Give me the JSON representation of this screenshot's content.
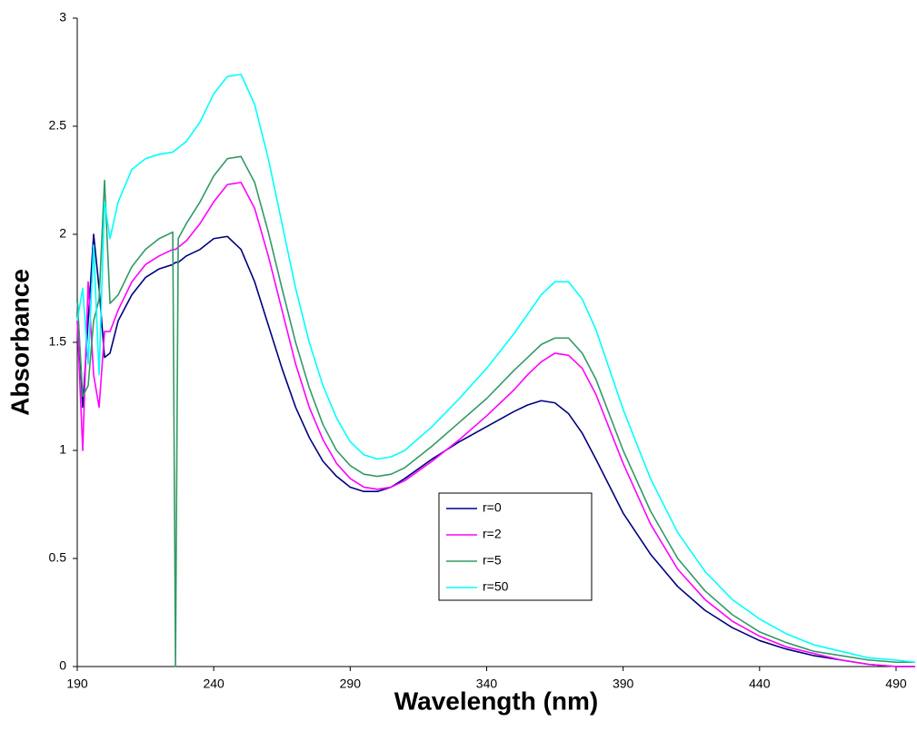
{
  "chart_data": {
    "type": "line",
    "x_label": "Wavelength (nm)",
    "y_label": "Absorbance",
    "x": [
      190,
      192,
      194,
      196,
      198,
      200,
      202,
      205,
      210,
      215,
      220,
      225,
      226,
      227,
      230,
      235,
      240,
      245,
      250,
      255,
      260,
      265,
      270,
      275,
      280,
      285,
      290,
      295,
      300,
      305,
      310,
      320,
      330,
      340,
      350,
      355,
      360,
      365,
      370,
      375,
      380,
      390,
      400,
      410,
      420,
      430,
      440,
      450,
      460,
      470,
      480,
      490,
      497
    ],
    "xlim": [
      190,
      497
    ],
    "xticks": [
      190,
      240,
      290,
      340,
      390,
      440,
      490
    ],
    "ylim": [
      0,
      3
    ],
    "yticks": [
      0,
      0.5,
      1,
      1.5,
      2,
      2.5,
      3
    ],
    "grid": false,
    "legend": "center",
    "series": [
      {
        "name": "r=0",
        "color": "#000080",
        "values": [
          1.7,
          1.2,
          1.6,
          2.0,
          1.75,
          1.43,
          1.45,
          1.6,
          1.72,
          1.8,
          1.84,
          1.86,
          1.87,
          1.87,
          1.9,
          1.93,
          1.98,
          1.99,
          1.93,
          1.78,
          1.58,
          1.38,
          1.2,
          1.06,
          0.95,
          0.88,
          0.83,
          0.81,
          0.81,
          0.83,
          0.87,
          0.96,
          1.04,
          1.11,
          1.18,
          1.21,
          1.23,
          1.22,
          1.17,
          1.08,
          0.96,
          0.71,
          0.52,
          0.37,
          0.26,
          0.18,
          0.12,
          0.08,
          0.05,
          0.03,
          0.01,
          0.0,
          0.0
        ]
      },
      {
        "name": "r=2",
        "color": "#ff00ff",
        "values": [
          1.6,
          1.0,
          1.78,
          1.35,
          1.2,
          1.55,
          1.55,
          1.65,
          1.78,
          1.86,
          1.9,
          1.93,
          1.93,
          1.94,
          1.97,
          2.05,
          2.15,
          2.23,
          2.24,
          2.12,
          1.9,
          1.65,
          1.4,
          1.2,
          1.05,
          0.94,
          0.87,
          0.83,
          0.82,
          0.83,
          0.86,
          0.95,
          1.05,
          1.16,
          1.28,
          1.35,
          1.41,
          1.45,
          1.44,
          1.38,
          1.26,
          0.94,
          0.66,
          0.45,
          0.31,
          0.21,
          0.14,
          0.09,
          0.06,
          0.03,
          0.01,
          0.0,
          0.0
        ]
      },
      {
        "name": "r=5",
        "color": "#339966",
        "values": [
          1.7,
          1.25,
          1.3,
          1.6,
          1.7,
          2.25,
          1.68,
          1.72,
          1.85,
          1.93,
          1.98,
          2.01,
          0,
          1.98,
          2.05,
          2.15,
          2.27,
          2.35,
          2.36,
          2.24,
          2.01,
          1.75,
          1.5,
          1.29,
          1.12,
          1.0,
          0.93,
          0.89,
          0.88,
          0.89,
          0.92,
          1.02,
          1.13,
          1.24,
          1.37,
          1.43,
          1.49,
          1.52,
          1.52,
          1.45,
          1.33,
          1.0,
          0.72,
          0.5,
          0.35,
          0.24,
          0.16,
          0.11,
          0.07,
          0.05,
          0.03,
          0.02,
          0.02
        ]
      },
      {
        "name": "r=50",
        "color": "#00ffff",
        "values": [
          1.6,
          1.75,
          1.4,
          1.95,
          1.35,
          2.15,
          1.98,
          2.15,
          2.3,
          2.35,
          2.37,
          2.38,
          2.39,
          2.4,
          2.43,
          2.52,
          2.65,
          2.73,
          2.74,
          2.6,
          2.35,
          2.05,
          1.75,
          1.5,
          1.3,
          1.15,
          1.04,
          0.98,
          0.96,
          0.97,
          1.0,
          1.11,
          1.24,
          1.38,
          1.54,
          1.63,
          1.72,
          1.78,
          1.78,
          1.7,
          1.56,
          1.19,
          0.87,
          0.62,
          0.44,
          0.31,
          0.22,
          0.15,
          0.1,
          0.07,
          0.04,
          0.03,
          0.02
        ]
      }
    ]
  }
}
